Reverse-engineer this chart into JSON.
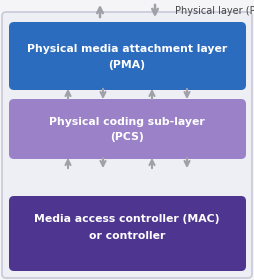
{
  "bg_color": "#f5f5f8",
  "outer_box_facecolor": "#eeeef5",
  "outer_box_edgecolor": "#c8c8d8",
  "pma_color": "#2b6cbf",
  "pcs_color": "#9b82c8",
  "mac_color": "#4e3590",
  "pma_label1": "Physical media attachment layer",
  "pma_label2": "(PMA)",
  "pcs_label1": "Physical coding sub-layer",
  "pcs_label2": "(PCS)",
  "mac_label1": "Media access controller (MAC)",
  "mac_label2": "or controller",
  "phy_label": "Physical layer (PHY)",
  "arrow_color": "#a0a0a8",
  "text_white": "#ffffff",
  "text_dark": "#444444",
  "fig_width": 2.55,
  "fig_height": 2.8,
  "dpi": 100
}
